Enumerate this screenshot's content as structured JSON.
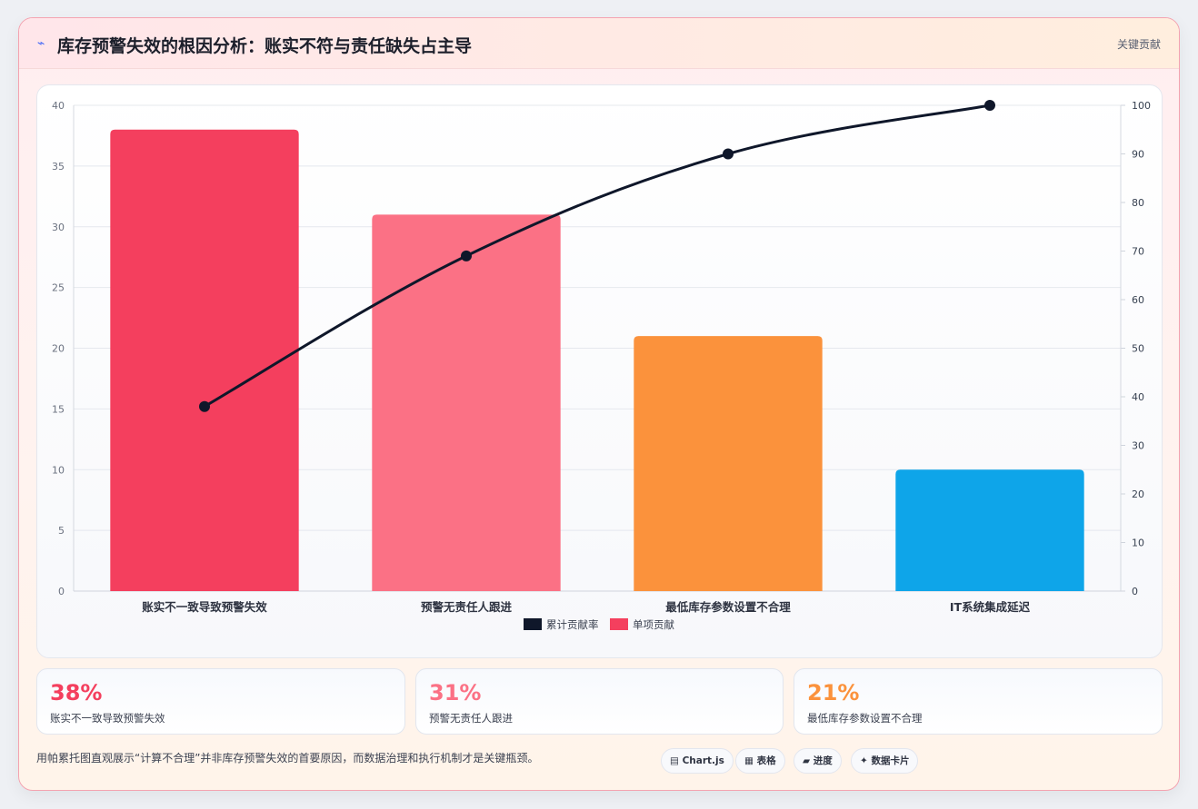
{
  "header": {
    "icon": "lightning-icon",
    "title": "库存预警失效的根因分析：账实不符与责任缺失占主导",
    "tag": "关键贡献"
  },
  "chart_data": {
    "type": "bar",
    "categories": [
      "账实不一致导致预警失效",
      "预警无责任人跟进",
      "最低库存参数设置不合理",
      "IT系统集成延迟"
    ],
    "series": [
      {
        "name": "单项贡献",
        "type": "bar",
        "axis": "left",
        "values": [
          38,
          31,
          21,
          10
        ]
      },
      {
        "name": "累计贡献率",
        "type": "line",
        "axis": "right",
        "values": [
          38,
          69,
          90,
          100
        ]
      }
    ],
    "bar_colors": [
      "#f43f5e",
      "#fb7185",
      "#fb923c",
      "#0ea5e9"
    ],
    "line_color": "#0f172a",
    "y_left": {
      "range": [
        0,
        40
      ],
      "ticks": [
        0,
        5,
        10,
        15,
        20,
        25,
        30,
        35,
        40
      ]
    },
    "y_right": {
      "range": [
        0,
        100
      ],
      "ticks": [
        0,
        10,
        20,
        30,
        40,
        50,
        60,
        70,
        80,
        90,
        100
      ]
    },
    "grid": true,
    "legend": {
      "placement": "bottom-center",
      "items": [
        {
          "label": "累计贡献率",
          "color": "#0f172a"
        },
        {
          "label": "单项贡献",
          "color": "#f43f5e"
        }
      ]
    }
  },
  "stats": [
    {
      "value": "38%",
      "label": "账实不一致导致预警失效",
      "color": "#f43f5e"
    },
    {
      "value": "31%",
      "label": "预警无责任人跟进",
      "color": "#fb7185"
    },
    {
      "value": "21%",
      "label": "最低库存参数设置不合理",
      "color": "#fb923c"
    }
  ],
  "footer": {
    "text": "用帕累托图直观展示“计算不合理”并非库存预警失效的首要原因，而数据治理和执行机制才是关键瓶颈。",
    "chips": [
      {
        "icon": "chart-icon",
        "glyph": "▤",
        "label": "Chart.js"
      },
      {
        "icon": "table-icon",
        "glyph": "▦",
        "label": "表格"
      },
      {
        "icon": "progress-icon",
        "glyph": "▰",
        "label": "进度"
      },
      {
        "icon": "sparkle-icon",
        "glyph": "✦",
        "label": "数据卡片"
      }
    ]
  }
}
